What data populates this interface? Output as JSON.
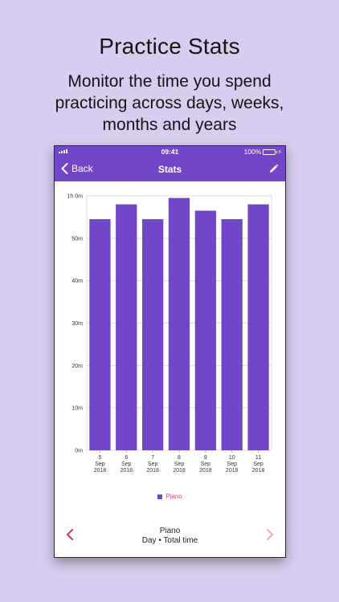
{
  "marketing": {
    "headline": "Practice Stats",
    "subline": "Monitor the time you spend practicing across days, weeks, months and years"
  },
  "status_bar": {
    "time": "09:41",
    "battery_text": "100%"
  },
  "nav": {
    "back_label": "Back",
    "title": "Stats",
    "edit_icon": "pencil-icon"
  },
  "colors": {
    "accent": "#7246c8",
    "legend_text": "#e0457b",
    "prev_arrow": "#d63a6e",
    "next_arrow": "#efaac3"
  },
  "chart_data": {
    "type": "bar",
    "categories": [
      "5 Sep 2018",
      "6 Sep 2018",
      "7 Sep 2018",
      "8 Sep 2018",
      "9 Sep 2018",
      "10 Sep 2018",
      "11 Sep 2018"
    ],
    "category_lines": [
      [
        "5",
        "Sep",
        "2018"
      ],
      [
        "6",
        "Sep",
        "2018"
      ],
      [
        "7",
        "Sep",
        "2018"
      ],
      [
        "8",
        "Sep",
        "2018"
      ],
      [
        "9",
        "Sep",
        "2018"
      ],
      [
        "10",
        "Sep",
        "2018"
      ],
      [
        "11",
        "Sep",
        "2018"
      ]
    ],
    "series": [
      {
        "name": "Piano",
        "values": [
          54.5,
          58,
          54.5,
          59.5,
          56.5,
          54.5,
          58
        ],
        "color": "#7246c8"
      }
    ],
    "ylim": [
      0,
      60
    ],
    "y_ticks": [
      {
        "value": 0,
        "label": "0m"
      },
      {
        "value": 10,
        "label": "10m"
      },
      {
        "value": 20,
        "label": "20m"
      },
      {
        "value": 30,
        "label": "30m"
      },
      {
        "value": 40,
        "label": "40m"
      },
      {
        "value": 50,
        "label": "50m"
      },
      {
        "value": 60,
        "label": "1h 0m"
      }
    ],
    "grid": true,
    "legend_position": "bottom-center"
  },
  "footer": {
    "title": "Piano",
    "subtitle": "Day • Total time",
    "prev_icon": "chevron-left-icon",
    "next_icon": "chevron-right-icon"
  }
}
